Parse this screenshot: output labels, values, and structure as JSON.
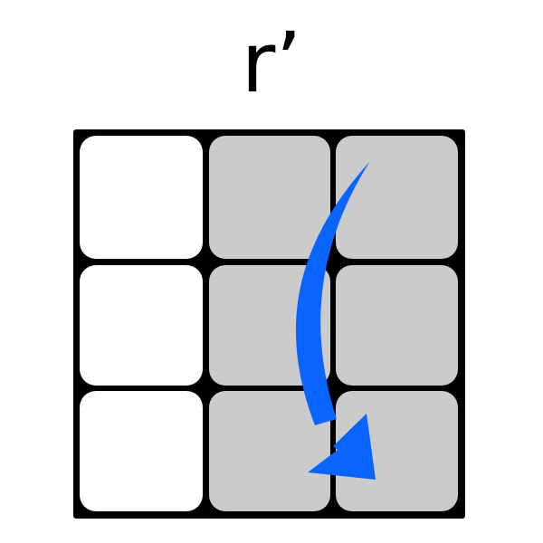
{
  "move": {
    "notation": "r’",
    "direction_arrow": "curved-down-arrow-icon"
  },
  "colors": {
    "face_border": "#000000",
    "unaffected_sticker": "#ffffff",
    "turned_sticker": "#cbcbcb",
    "arrow": "#0a64ff"
  },
  "face": {
    "grid": "3x3",
    "stickers": [
      [
        "white",
        "gray",
        "gray"
      ],
      [
        "white",
        "gray",
        "gray"
      ],
      [
        "white",
        "gray",
        "gray"
      ]
    ]
  }
}
